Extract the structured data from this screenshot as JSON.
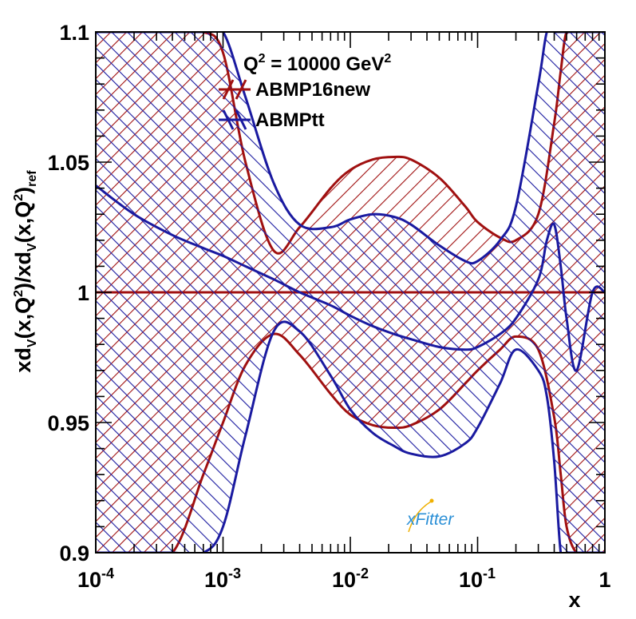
{
  "chart_data": {
    "type": "area",
    "annotation": {
      "q_label": "Q",
      "q_exp": "2",
      "q_value": " = 10000 GeV",
      "q_unit_exp": "2"
    },
    "xlabel": "x",
    "ylabel": {
      "p1": "xd",
      "p2": "V",
      "p3": "(x,Q",
      "p4": "2",
      "p5": ")/xd",
      "p6": "V",
      "p7": "(x,Q",
      "p8": "2",
      "p9": ")",
      "p10": "ref"
    },
    "xscale": "log",
    "xlim": [
      0.0001,
      1
    ],
    "ylim": [
      0.9,
      1.1
    ],
    "x_ticks": [
      {
        "base": "10",
        "exp": "-4",
        "value": 0.0001
      },
      {
        "base": "10",
        "exp": "-3",
        "value": 0.001
      },
      {
        "base": "10",
        "exp": "-2",
        "value": 0.01
      },
      {
        "base": "10",
        "exp": "-1",
        "value": 0.1
      },
      {
        "base": "1",
        "exp": "",
        "value": 1
      }
    ],
    "y_ticks": [
      "0.9",
      "0.95",
      "1",
      "1.05",
      "1.1"
    ],
    "legend_position": "top-right",
    "series": [
      {
        "name": "ABMP16new",
        "color": "#a01010",
        "hatch": "forward-diagonal",
        "x": [
          0.0001,
          0.0002,
          0.0004,
          0.0007,
          0.001,
          0.0015,
          0.0025,
          0.004,
          0.007,
          0.01,
          0.015,
          0.022,
          0.03,
          0.05,
          0.08,
          0.1,
          0.15,
          0.2,
          0.3,
          0.4,
          0.45,
          0.5,
          0.6,
          0.8,
          1.0
        ],
        "upper": [
          1.1,
          1.1,
          1.1,
          1.1,
          1.092,
          1.05,
          1.016,
          1.025,
          1.04,
          1.047,
          1.051,
          1.052,
          1.051,
          1.044,
          1.033,
          1.027,
          1.021,
          1.02,
          1.03,
          1.065,
          1.085,
          1.1,
          1.1,
          1.1,
          1.1
        ],
        "central": [
          1.0,
          1.0,
          1.0,
          1.0,
          1.0,
          1.0,
          1.0,
          1.0,
          1.0,
          1.0,
          1.0,
          1.0,
          1.0,
          1.0,
          1.0,
          1.0,
          1.0,
          1.0,
          1.0,
          1.0,
          1.0,
          1.0,
          1.0,
          1.0,
          1.0
        ],
        "lower": [
          0.9,
          0.9,
          0.9,
          0.93,
          0.95,
          0.972,
          0.984,
          0.976,
          0.961,
          0.953,
          0.949,
          0.948,
          0.949,
          0.955,
          0.965,
          0.97,
          0.978,
          0.983,
          0.978,
          0.952,
          0.93,
          0.91,
          0.9,
          0.9,
          0.9
        ]
      },
      {
        "name": "ABMPtt",
        "color": "#1a1aa0",
        "hatch": "backward-diagonal",
        "x": [
          0.0001,
          0.0002,
          0.0004,
          0.0007,
          0.001,
          0.0015,
          0.0025,
          0.004,
          0.007,
          0.01,
          0.015,
          0.022,
          0.03,
          0.05,
          0.08,
          0.1,
          0.15,
          0.2,
          0.3,
          0.35,
          0.4,
          0.45,
          0.5,
          0.6,
          0.8,
          1.0
        ],
        "upper": [
          1.1,
          1.1,
          1.1,
          1.1,
          1.1,
          1.075,
          1.042,
          1.026,
          1.025,
          1.028,
          1.03,
          1.029,
          1.026,
          1.018,
          1.012,
          1.012,
          1.02,
          1.033,
          1.08,
          1.1,
          1.1,
          1.1,
          1.1,
          1.1,
          1.1,
          1.1
        ],
        "central": [
          1.041,
          1.03,
          1.022,
          1.017,
          1.014,
          1.01,
          1.005,
          1.0,
          0.995,
          0.991,
          0.987,
          0.984,
          0.982,
          0.979,
          0.978,
          0.979,
          0.984,
          0.99,
          1.005,
          1.02,
          1.026,
          1.01,
          0.99,
          0.97,
          1.0,
          1.0
        ],
        "lower": [
          0.9,
          0.9,
          0.9,
          0.9,
          0.91,
          0.945,
          0.985,
          0.985,
          0.968,
          0.955,
          0.946,
          0.941,
          0.938,
          0.937,
          0.942,
          0.948,
          0.965,
          0.978,
          0.97,
          0.96,
          0.935,
          0.9,
          0.9,
          0.9,
          0.9,
          0.9
        ]
      }
    ],
    "watermark": {
      "text": "xFitter",
      "color": "#2a8fd6"
    }
  }
}
